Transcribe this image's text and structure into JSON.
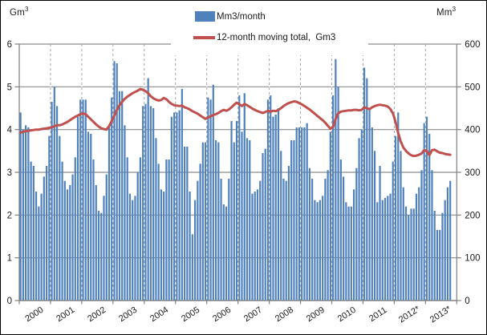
{
  "axes": {
    "left_unit": {
      "base": "Gm",
      "sup": "3"
    },
    "right_unit": {
      "base": "Mm",
      "sup": "3"
    }
  },
  "legend": {
    "bar_label": "Mm3/month",
    "line_label": "12-month moving total,  Gm3"
  },
  "chart_data": {
    "type": "bar+line",
    "categories": [
      "2000",
      "2001",
      "2002",
      "2003",
      "2004",
      "2005",
      "2006",
      "2007",
      "2008",
      "2009",
      "2010",
      "2011",
      "2012*",
      "2013*"
    ],
    "months_per_year": [
      12,
      12,
      12,
      12,
      12,
      12,
      12,
      12,
      12,
      12,
      12,
      12,
      12,
      10
    ],
    "left_axis": {
      "label": "Gm3",
      "min": 0,
      "max": 6,
      "ticks": [
        "0",
        "1",
        "2",
        "3",
        "4",
        "5",
        "6"
      ]
    },
    "right_axis": {
      "label": "Mm3",
      "min": 0,
      "max": 600,
      "ticks": [
        "0",
        "100",
        "200",
        "300",
        "400",
        "500",
        "600"
      ]
    },
    "grid": "horizontal solid, vertical dashed at year boundaries",
    "legend_position": "top-center",
    "series": [
      {
        "name": "Mm3/month",
        "type": "bar",
        "axis": "right",
        "unit": "Mm3",
        "values": [
          440,
          400,
          410,
          405,
          325,
          315,
          255,
          220,
          250,
          290,
          315,
          385,
          465,
          500,
          455,
          385,
          325,
          280,
          260,
          270,
          295,
          335,
          430,
          470,
          470,
          470,
          395,
          390,
          330,
          270,
          210,
          205,
          245,
          295,
          405,
          475,
          560,
          555,
          490,
          490,
          410,
          335,
          250,
          235,
          245,
          300,
          335,
          455,
          460,
          520,
          455,
          450,
          380,
          320,
          260,
          255,
          330,
          330,
          430,
          440,
          440,
          445,
          495,
          360,
          360,
          255,
          155,
          235,
          280,
          320,
          370,
          370,
          475,
          470,
          505,
          375,
          370,
          285,
          225,
          220,
          285,
          420,
          370,
          420,
          480,
          395,
          485,
          380,
          375,
          250,
          255,
          260,
          280,
          345,
          355,
          470,
          480,
          430,
          435,
          450,
          350,
          285,
          280,
          315,
          375,
          375,
          405,
          405,
          405,
          405,
          415,
          310,
          285,
          235,
          230,
          235,
          245,
          285,
          305,
          395,
          480,
          565,
          500,
          330,
          290,
          230,
          220,
          220,
          260,
          310,
          380,
          400,
          545,
          520,
          450,
          405,
          350,
          230,
          315,
          235,
          240,
          245,
          250,
          325,
          385,
          440,
          350,
          265,
          220,
          200,
          215,
          215,
          250,
          265,
          305,
          415,
          430,
          390,
          305,
          210,
          165,
          165,
          205,
          235,
          265,
          280
        ]
      },
      {
        "name": "12-month moving total, Gm3",
        "type": "line",
        "axis": "left",
        "unit": "Gm3",
        "values": [
          3.93,
          3.95,
          3.96,
          3.97,
          3.98,
          3.99,
          4.0,
          4.0,
          4.01,
          4.02,
          4.03,
          4.04,
          4.05,
          4.08,
          4.1,
          4.1,
          4.12,
          4.15,
          4.18,
          4.22,
          4.26,
          4.3,
          4.33,
          4.36,
          4.38,
          4.36,
          4.3,
          4.24,
          4.18,
          4.12,
          4.07,
          4.03,
          4.01,
          4.0,
          4.08,
          4.2,
          4.33,
          4.46,
          4.57,
          4.65,
          4.72,
          4.77,
          4.81,
          4.85,
          4.88,
          4.91,
          4.95,
          4.93,
          4.9,
          4.85,
          4.78,
          4.73,
          4.7,
          4.68,
          4.69,
          4.74,
          4.71,
          4.65,
          4.6,
          4.57,
          4.56,
          4.55,
          4.56,
          4.52,
          4.5,
          4.47,
          4.43,
          4.4,
          4.37,
          4.33,
          4.29,
          4.25,
          4.28,
          4.31,
          4.34,
          4.36,
          4.39,
          4.43,
          4.46,
          4.44,
          4.47,
          4.52,
          4.58,
          4.63,
          4.59,
          4.55,
          4.6,
          4.57,
          4.53,
          4.49,
          4.46,
          4.43,
          4.41,
          4.39,
          4.41,
          4.44,
          4.42,
          4.44,
          4.43,
          4.46,
          4.5,
          4.55,
          4.59,
          4.62,
          4.64,
          4.66,
          4.65,
          4.62,
          4.59,
          4.55,
          4.51,
          4.47,
          4.42,
          4.37,
          4.32,
          4.27,
          4.22,
          4.16,
          4.09,
          4.02,
          4.06,
          4.25,
          4.38,
          4.42,
          4.43,
          4.44,
          4.45,
          4.45,
          4.46,
          4.46,
          4.45,
          4.46,
          4.52,
          4.5,
          4.48,
          4.52,
          4.55,
          4.57,
          4.58,
          4.57,
          4.56,
          4.54,
          4.48,
          4.38,
          4.18,
          3.92,
          3.72,
          3.58,
          3.5,
          3.44,
          3.4,
          3.38,
          3.39,
          3.41,
          3.44,
          3.52,
          3.5,
          3.4,
          3.52,
          3.53,
          3.49,
          3.46,
          3.45,
          3.43,
          3.42,
          3.41
        ]
      }
    ],
    "colors": {
      "bar": "#4f81bd",
      "line": "#c0504d",
      "grid": "#8c8c8c",
      "axis": "#808080",
      "year_divider": "#a6a6a6",
      "text": "#1a1a1a",
      "background": "#ffffff"
    }
  }
}
